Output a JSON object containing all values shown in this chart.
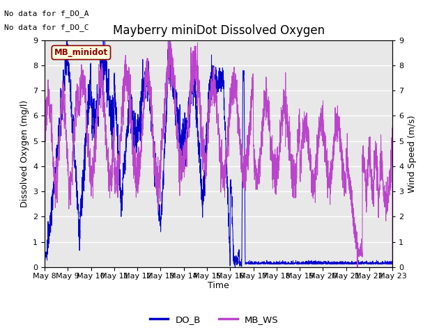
{
  "title": "Mayberry miniDot Dissolved Oxygen",
  "xlabel": "Time",
  "ylabel_left": "Dissolved Oxygen (mg/l)",
  "ylabel_right": "Wind Speed (m/s)",
  "ylim": [
    0.0,
    9.0
  ],
  "yticks": [
    0.0,
    1.0,
    2.0,
    3.0,
    4.0,
    5.0,
    6.0,
    7.0,
    8.0,
    9.0
  ],
  "note1": "No data for f_DO_A",
  "note2": "No data for f_DO_C",
  "legend_label_do": "DO_B",
  "legend_label_ws": "MB_WS",
  "box_label": "MB_minidot",
  "do_color": "#0000cc",
  "ws_color": "#bb44cc",
  "background_color": "#e8e8e8",
  "xtick_labels": [
    "May 8",
    "May 9",
    "May 10",
    "May 11",
    "May 12",
    "May 13",
    "May 14",
    "May 15",
    "May 16",
    "May 17",
    "May 18",
    "May 19",
    "May 20",
    "May 21",
    "May 22",
    "May 23"
  ],
  "title_fontsize": 12,
  "label_fontsize": 9,
  "tick_fontsize": 8,
  "note_fontsize": 8,
  "figwidth": 6.4,
  "figheight": 4.8,
  "dpi": 100
}
